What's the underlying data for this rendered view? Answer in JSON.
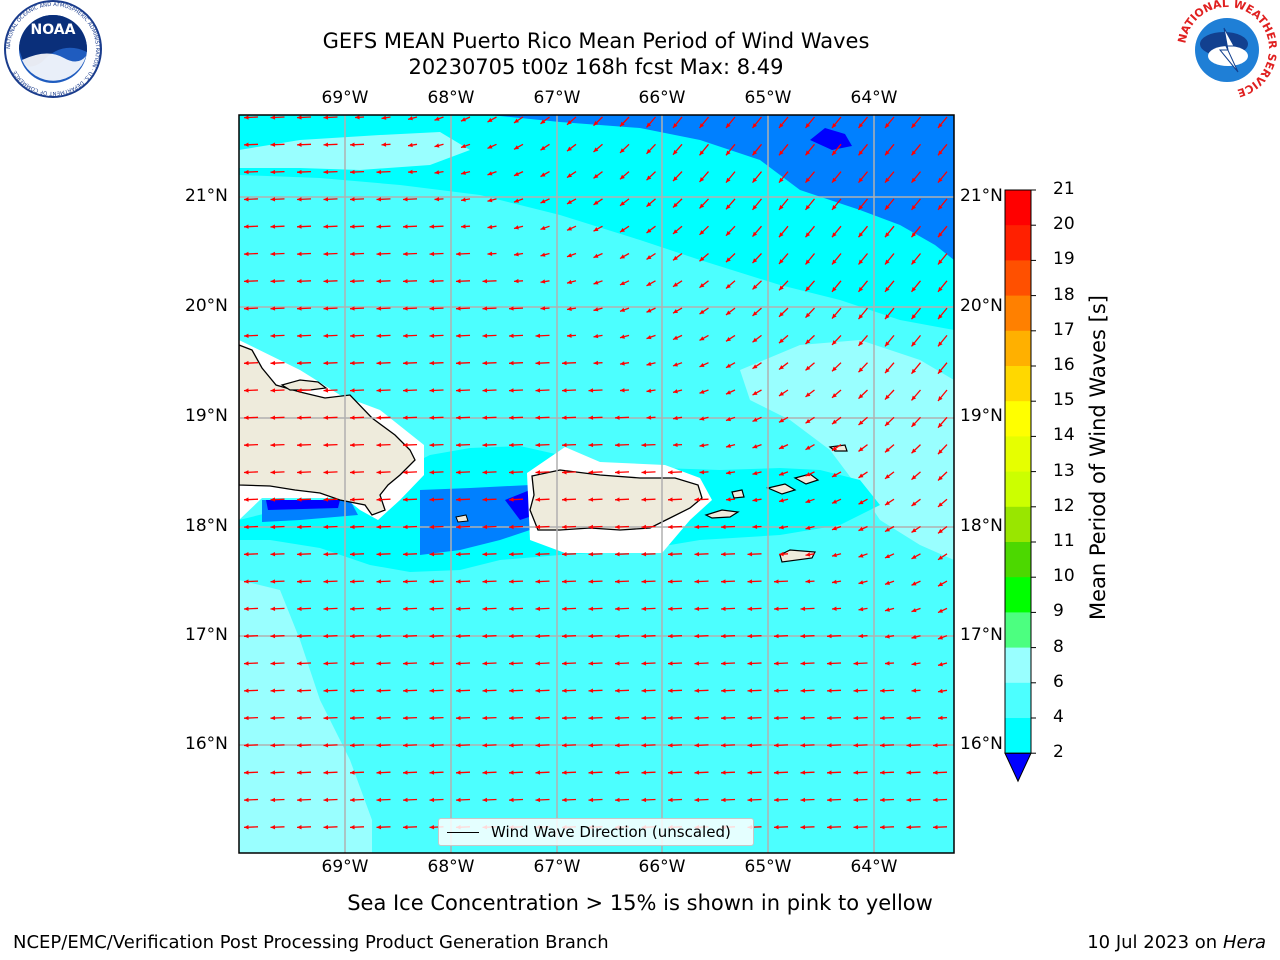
{
  "header": {
    "title_line1": "GEFS MEAN Puerto Rico Mean Period of Wind Waves",
    "title_line2": "20230705 t00z 168h fcst   Max: 8.49"
  },
  "logos": {
    "left_text": "NOAA",
    "left_ring": "NATIONAL OCEANIC AND ATMOSPHERIC ADMINISTRATION · U.S. DEPARTMENT OF COMMERCE",
    "right_ring": "NATIONAL WEATHER SERVICE"
  },
  "map": {
    "lon_labels": [
      "69°W",
      "68°W",
      "67°W",
      "66°W",
      "65°W",
      "64°W"
    ],
    "lat_labels": [
      "21°N",
      "20°N",
      "19°N",
      "18°N",
      "17°N",
      "16°N"
    ],
    "legend_label": "Wind Wave Direction (unscaled)",
    "arrow_color": "#ff0000",
    "land_color": "#eeebdc",
    "grid_color": "#b0b0b0"
  },
  "colorbar": {
    "label": "Mean Period of Wind Waves [s]",
    "ticks": [
      "2",
      "4",
      "6",
      "8",
      "9",
      "10",
      "11",
      "12",
      "13",
      "14",
      "15",
      "16",
      "17",
      "18",
      "19",
      "20",
      "21"
    ],
    "colors": [
      "#0000ff",
      "#0080ff",
      "#00ffff",
      "#4cffff",
      "#99ffff",
      "#4cff80",
      "#00ff00",
      "#4cd800",
      "#99e600",
      "#ccff00",
      "#e6ff00",
      "#ffff00",
      "#ffd800",
      "#ffb000",
      "#ff8000",
      "#ff5000",
      "#ff2000",
      "#ff0000"
    ]
  },
  "footer": {
    "note": "Sea Ice Concentration > 15% is shown in pink to yellow",
    "left": "NCEP/EMC/Verification Post Processing Product Generation Branch",
    "right_prefix": "10 Jul 2023 on ",
    "right_machine": "Hera"
  }
}
